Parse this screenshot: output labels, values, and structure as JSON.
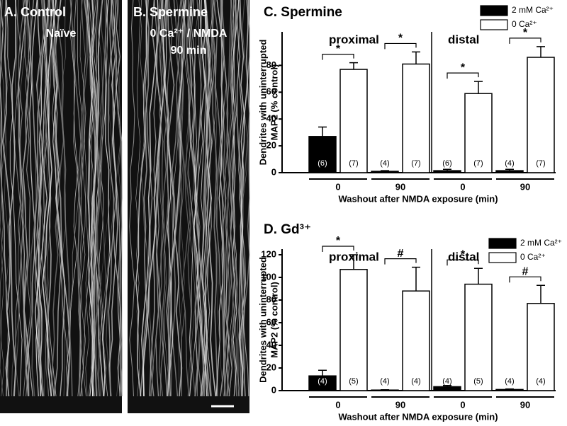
{
  "panels": {
    "a": {
      "title": "A. Control",
      "condition": [
        "Naïve"
      ]
    },
    "b": {
      "title": "B. Spermine",
      "condition": [
        "0 Ca²⁺ / NMDA",
        "90 min"
      ]
    }
  },
  "chart_data": [
    {
      "type": "bar",
      "title": "C. Spermine",
      "groups": [
        "proximal",
        "distal"
      ],
      "categories": [
        "0",
        "90",
        "0",
        "90"
      ],
      "xlabel": "Washout after NMDA exposure (min)",
      "ylabel": [
        "Dendrites with uninterrupted",
        "MAP2 (% control)"
      ],
      "ylim": [
        0,
        105
      ],
      "yticks": [
        0,
        20,
        40,
        60,
        80
      ],
      "series": [
        {
          "name": "2 mM Ca²⁺",
          "color": "#000000",
          "values": [
            27,
            1,
            1.5,
            1.5
          ],
          "errors": [
            7,
            0.5,
            1,
            1
          ],
          "n_labels": [
            "(6)",
            "(4)",
            "(6)",
            "(4)"
          ]
        },
        {
          "name": "0 Ca²⁺",
          "color": "#ffffff",
          "values": [
            77,
            81,
            59,
            86
          ],
          "errors": [
            5,
            9,
            9,
            8
          ],
          "n_labels": [
            "(7)",
            "(7)",
            "(7)",
            "(7)"
          ]
        }
      ],
      "significance": [
        "*",
        "*",
        "*",
        "*"
      ]
    },
    {
      "type": "bar",
      "title": "D. Gd³⁺",
      "groups": [
        "proximal",
        "distal"
      ],
      "categories": [
        "0",
        "90",
        "0",
        "90"
      ],
      "xlabel": "Washout after NMDA exposure (min)",
      "ylabel": [
        "Dendrites with uninterrupted",
        "MAP2 (% control)"
      ],
      "ylim": [
        0,
        125
      ],
      "yticks": [
        0,
        20,
        40,
        60,
        80,
        100,
        120
      ],
      "series": [
        {
          "name": "2 mM Ca²⁺",
          "color": "#000000",
          "values": [
            13,
            0.5,
            3.5,
            1
          ],
          "errors": [
            5,
            0.3,
            1,
            0.5
          ],
          "n_labels": [
            "(4)",
            "(4)",
            "(4)",
            "(4)"
          ]
        },
        {
          "name": "0 Ca²⁺",
          "color": "#ffffff",
          "values": [
            107,
            88,
            94,
            77
          ],
          "errors": [
            13,
            21,
            14,
            16
          ],
          "n_labels": [
            "(5)",
            "(4)",
            "(5)",
            "(4)"
          ]
        }
      ],
      "significance": [
        "*",
        "#",
        "*",
        "#"
      ]
    }
  ]
}
